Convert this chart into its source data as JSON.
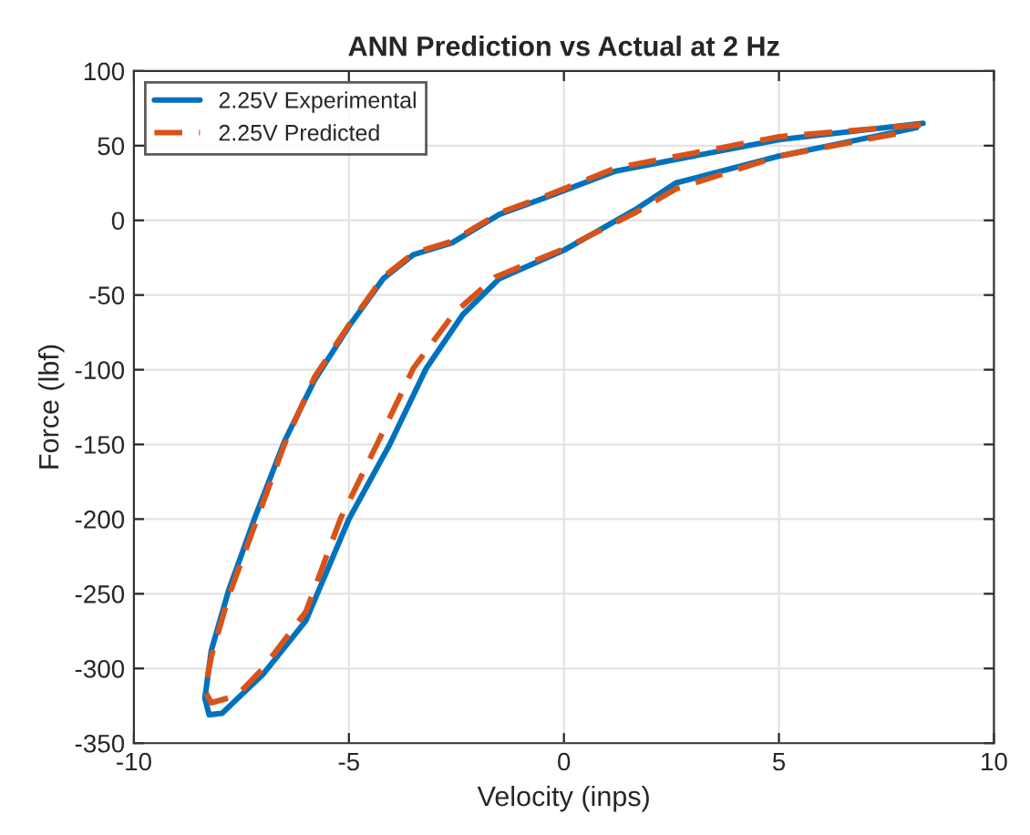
{
  "chart_data": {
    "type": "line",
    "title": "ANN Prediction vs Actual at 2 Hz",
    "xlabel": "Velocity (inps)",
    "ylabel": "Force (lbf)",
    "xlim": [
      -10,
      10
    ],
    "xticks": [
      -10,
      -5,
      0,
      5,
      10
    ],
    "ylim": [
      -350,
      100
    ],
    "yticks": [
      -350,
      -300,
      -250,
      -200,
      -150,
      -100,
      -50,
      0,
      50,
      100
    ],
    "grid": true,
    "legend": "top left",
    "series": [
      {
        "name": "2.25V Experimental",
        "color": "#0072bd",
        "line_style": "solid",
        "x": [
          8.35,
          5,
          1.2,
          -0.45,
          -1.5,
          -2.6,
          -3.5,
          -4.2,
          -5,
          -5.8,
          -6.5,
          -7.2,
          -7.8,
          -8.2,
          -8.35,
          -8.25,
          -7.95,
          -7,
          -6,
          -5,
          -4.05,
          -3.2,
          -2.35,
          -1.5,
          0,
          1.65,
          2.6,
          5,
          8.2
        ],
        "values": [
          65,
          54,
          33,
          15,
          4,
          -15,
          -23,
          -39,
          -71,
          -107,
          -148,
          -200,
          -248,
          -288,
          -320,
          -331,
          -330,
          -304,
          -268,
          -200,
          -150,
          -99,
          -63,
          -39,
          -20,
          7,
          25,
          43,
          62
        ]
      },
      {
        "name": "2.25V Predicted",
        "color": "#d95319",
        "line_style": "dashed",
        "x": [
          8.3,
          5,
          1.2,
          -0.45,
          -1.5,
          -2.6,
          -3.5,
          -4.2,
          -5,
          -5.8,
          -6.5,
          -7.2,
          -7.8,
          -8.2,
          -8.35,
          -8.2,
          -7.6,
          -7,
          -6,
          -5.2,
          -4.35,
          -3.5,
          -2.55,
          -1.6,
          0,
          1.65,
          2.6,
          5,
          8.1
        ],
        "values": [
          64,
          56,
          35,
          16,
          5,
          -14,
          -22,
          -38,
          -70,
          -105,
          -150,
          -205,
          -252,
          -292,
          -315,
          -323,
          -318,
          -300,
          -262,
          -200,
          -150,
          -99,
          -62,
          -38,
          -19,
          5,
          21,
          43,
          60
        ]
      }
    ]
  }
}
